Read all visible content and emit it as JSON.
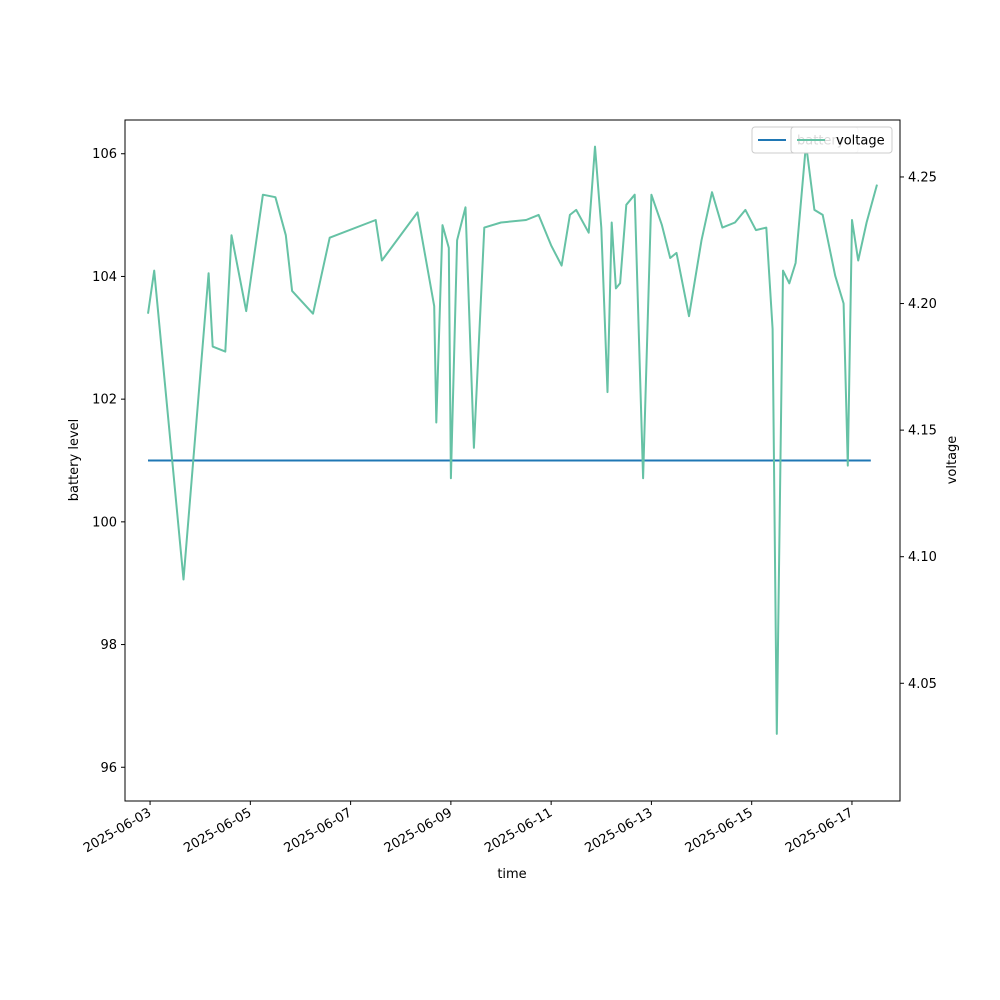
{
  "chart_data": {
    "type": "line",
    "title": "",
    "xlabel": "time",
    "ylabel_left": "battery level",
    "ylabel_right": "voltage",
    "xlim": [
      "2025-06-02T12:00",
      "2025-06-17T23:00"
    ],
    "ylim_left": [
      95.45,
      106.55
    ],
    "ylim_right": [
      4.0035,
      4.2725
    ],
    "x_ticks": [
      "2025-06-03",
      "2025-06-05",
      "2025-06-07",
      "2025-06-09",
      "2025-06-11",
      "2025-06-13",
      "2025-06-15",
      "2025-06-17"
    ],
    "y_ticks_left": [
      96,
      98,
      100,
      102,
      104,
      106
    ],
    "y_ticks_right": [
      "4.05",
      "4.10",
      "4.15",
      "4.20",
      "4.25"
    ],
    "grid": false,
    "legend_left": {
      "placement": "upper right",
      "label": "battery"
    },
    "legend_right": {
      "placement": "upper right",
      "label": "voltage"
    },
    "series": [
      {
        "name": "battery",
        "axis": "left",
        "color": "#1f77b4",
        "points": [
          [
            "2025-06-02T23:00",
            101
          ],
          [
            "2025-06-17T09:00",
            101
          ]
        ]
      },
      {
        "name": "voltage",
        "axis": "right",
        "color": "#66c2a5",
        "points": [
          [
            "2025-06-02T23:00",
            4.196
          ],
          [
            "2025-06-03T02:00",
            4.213
          ],
          [
            "2025-06-03T16:00",
            4.091
          ],
          [
            "2025-06-04T04:00",
            4.212
          ],
          [
            "2025-06-04T06:00",
            4.183
          ],
          [
            "2025-06-04T12:00",
            4.181
          ],
          [
            "2025-06-04T15:00",
            4.227
          ],
          [
            "2025-06-04T22:00",
            4.197
          ],
          [
            "2025-06-05T06:00",
            4.243
          ],
          [
            "2025-06-05T12:00",
            4.242
          ],
          [
            "2025-06-05T17:00",
            4.227
          ],
          [
            "2025-06-05T20:00",
            4.205
          ],
          [
            "2025-06-06T06:00",
            4.196
          ],
          [
            "2025-06-06T14:00",
            4.226
          ],
          [
            "2025-06-07T12:00",
            4.233
          ],
          [
            "2025-06-07T15:00",
            4.217
          ],
          [
            "2025-06-08T08:00",
            4.236
          ],
          [
            "2025-06-08T16:00",
            4.199
          ],
          [
            "2025-06-08T17:00",
            4.153
          ],
          [
            "2025-06-08T20:00",
            4.231
          ],
          [
            "2025-06-08T23:00",
            4.222
          ],
          [
            "2025-06-09T00:00",
            4.131
          ],
          [
            "2025-06-09T03:00",
            4.225
          ],
          [
            "2025-06-09T07:00",
            4.238
          ],
          [
            "2025-06-09T11:00",
            4.143
          ],
          [
            "2025-06-09T16:00",
            4.23
          ],
          [
            "2025-06-10T00:00",
            4.232
          ],
          [
            "2025-06-10T12:00",
            4.233
          ],
          [
            "2025-06-10T18:00",
            4.235
          ],
          [
            "2025-06-11T00:00",
            4.223
          ],
          [
            "2025-06-11T05:00",
            4.215
          ],
          [
            "2025-06-11T09:00",
            4.235
          ],
          [
            "2025-06-11T12:00",
            4.237
          ],
          [
            "2025-06-11T18:00",
            4.228
          ],
          [
            "2025-06-11T21:00",
            4.262
          ],
          [
            "2025-06-12T00:00",
            4.23
          ],
          [
            "2025-06-12T03:00",
            4.165
          ],
          [
            "2025-06-12T05:00",
            4.232
          ],
          [
            "2025-06-12T07:00",
            4.206
          ],
          [
            "2025-06-12T09:00",
            4.208
          ],
          [
            "2025-06-12T12:00",
            4.239
          ],
          [
            "2025-06-12T16:00",
            4.243
          ],
          [
            "2025-06-12T20:00",
            4.131
          ],
          [
            "2025-06-13T00:00",
            4.243
          ],
          [
            "2025-06-13T05:00",
            4.231
          ],
          [
            "2025-06-13T09:00",
            4.218
          ],
          [
            "2025-06-13T12:00",
            4.22
          ],
          [
            "2025-06-13T18:00",
            4.195
          ],
          [
            "2025-06-14T00:00",
            4.225
          ],
          [
            "2025-06-14T05:00",
            4.244
          ],
          [
            "2025-06-14T10:00",
            4.23
          ],
          [
            "2025-06-14T16:00",
            4.232
          ],
          [
            "2025-06-14T21:00",
            4.237
          ],
          [
            "2025-06-15T02:00",
            4.229
          ],
          [
            "2025-06-15T07:00",
            4.23
          ],
          [
            "2025-06-15T10:00",
            4.19
          ],
          [
            "2025-06-15T12:00",
            4.03
          ],
          [
            "2025-06-15T15:00",
            4.213
          ],
          [
            "2025-06-15T18:00",
            4.208
          ],
          [
            "2025-06-15T21:00",
            4.216
          ],
          [
            "2025-06-16T02:00",
            4.263
          ],
          [
            "2025-06-16T06:00",
            4.237
          ],
          [
            "2025-06-16T10:00",
            4.235
          ],
          [
            "2025-06-16T16:00",
            4.211
          ],
          [
            "2025-06-16T20:00",
            4.2
          ],
          [
            "2025-06-16T22:00",
            4.136
          ],
          [
            "2025-06-17T00:00",
            4.233
          ],
          [
            "2025-06-17T03:00",
            4.217
          ],
          [
            "2025-06-17T07:00",
            4.232
          ],
          [
            "2025-06-17T12:00",
            4.247
          ]
        ]
      }
    ]
  }
}
